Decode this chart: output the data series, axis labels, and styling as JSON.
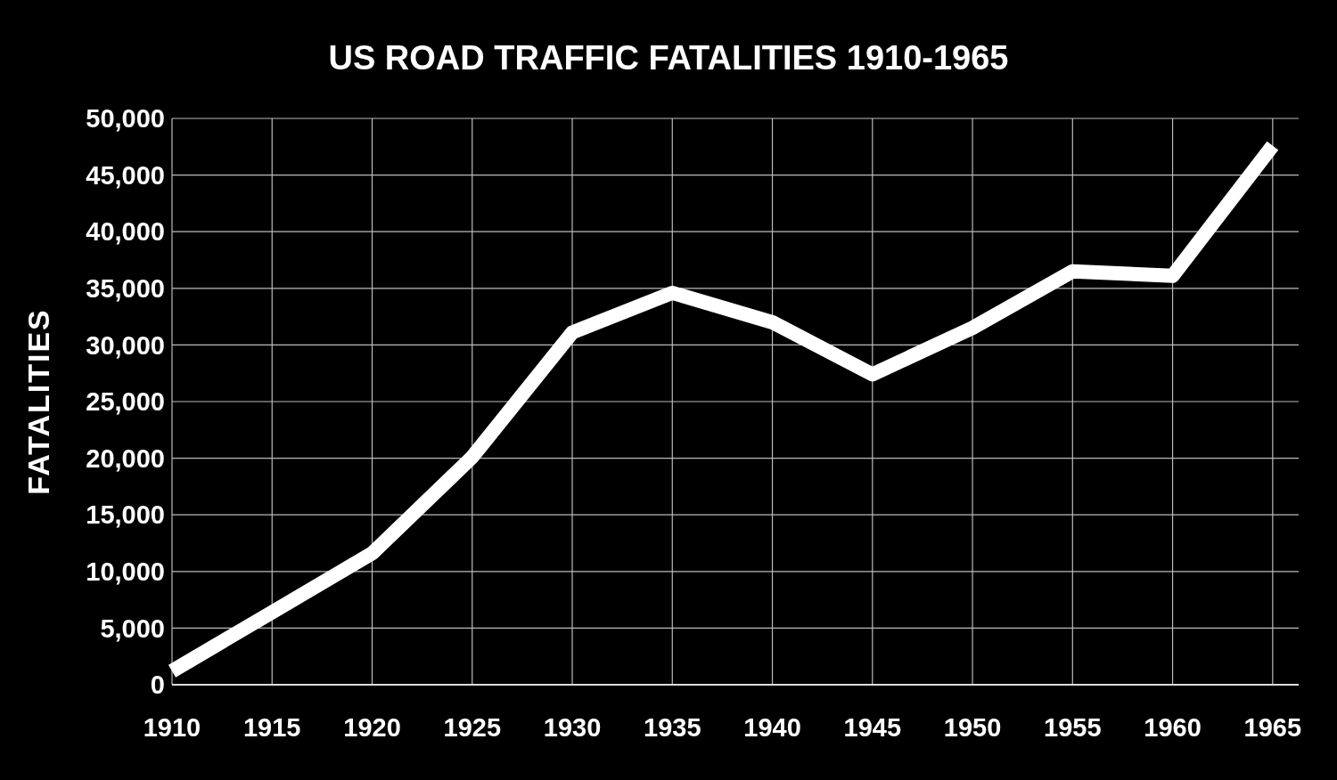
{
  "chart_data": {
    "type": "line",
    "title": "US ROAD TRAFFIC FATALITIES 1910-1965",
    "ylabel": "FATALITIES",
    "x": [
      1910,
      1915,
      1920,
      1925,
      1930,
      1935,
      1940,
      1945,
      1950,
      1955,
      1960,
      1965
    ],
    "series": [
      {
        "color": "#ffffff",
        "values": [
          1200,
          6400,
          11600,
          20100,
          31100,
          34600,
          32000,
          27400,
          31500,
          36500,
          36100,
          47600
        ]
      }
    ],
    "xlim": [
      1910,
      1966.3
    ],
    "xticks": [
      1910,
      1915,
      1920,
      1925,
      1930,
      1935,
      1940,
      1945,
      1950,
      1955,
      1960,
      1965
    ],
    "ylim": [
      0,
      50000
    ],
    "yticks": [
      {
        "value": 0,
        "label": "0"
      },
      {
        "value": 5000,
        "label": "5,000"
      },
      {
        "value": 10000,
        "label": "10,000"
      },
      {
        "value": 15000,
        "label": "15,000"
      },
      {
        "value": 20000,
        "label": "20,000"
      },
      {
        "value": 25000,
        "label": "25,000"
      },
      {
        "value": 30000,
        "label": "30,000"
      },
      {
        "value": 35000,
        "label": "35,000"
      },
      {
        "value": 40000,
        "label": "40,000"
      },
      {
        "value": 45000,
        "label": "45,000"
      },
      {
        "value": 50000,
        "label": "50,000"
      }
    ],
    "grid": true,
    "marker": "none",
    "line_style": "solid"
  }
}
